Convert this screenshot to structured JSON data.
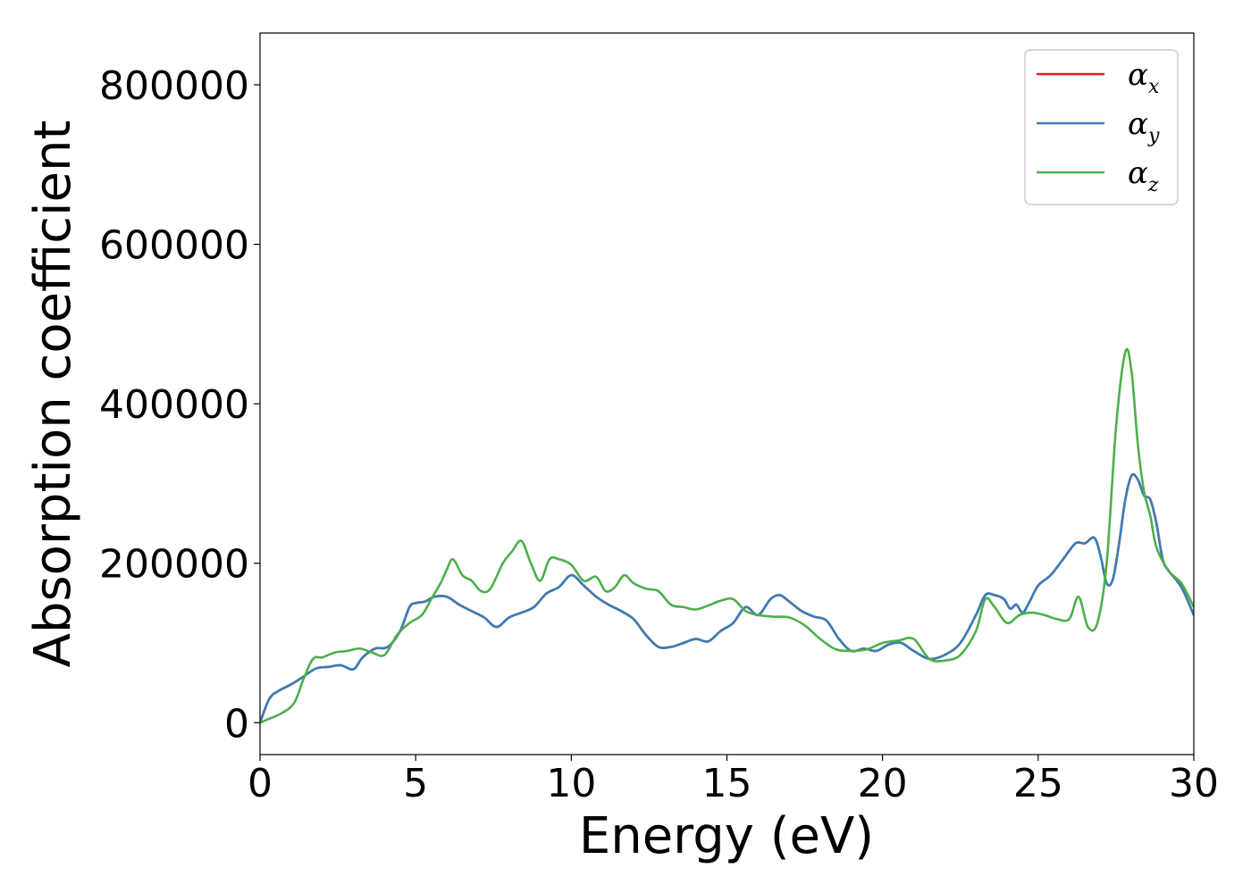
{
  "chart_data": {
    "type": "line",
    "title": "",
    "xlabel": "Energy (eV)",
    "ylabel": "Absorption coefficient",
    "xlim": [
      0,
      30
    ],
    "ylim": [
      -40000,
      865000
    ],
    "xticks": [
      0,
      5,
      10,
      15,
      20,
      25,
      30
    ],
    "yticks": [
      0,
      200000,
      400000,
      600000,
      800000
    ],
    "grid": false,
    "legend": {
      "placement": "top-right",
      "entries": [
        {
          "symbol": "α",
          "sub": "x",
          "color": "#e41a1c"
        },
        {
          "symbol": "α",
          "sub": "y",
          "color": "#377eb8"
        },
        {
          "symbol": "α",
          "sub": "z",
          "color": "#4daf4a"
        }
      ]
    },
    "series": [
      {
        "legend_index": 0,
        "color": "#e41a1c",
        "x": [
          0,
          0.3,
          0.6,
          1.0,
          1.4,
          1.8,
          2.2,
          2.6,
          3.0,
          3.3,
          3.7,
          4.1,
          4.5,
          4.8,
          5.0,
          5.3,
          5.6,
          6.0,
          6.4,
          6.8,
          7.2,
          7.6,
          8.0,
          8.4,
          8.8,
          9.2,
          9.6,
          10.0,
          10.4,
          10.8,
          11.2,
          11.6,
          12.0,
          12.4,
          12.8,
          13.2,
          13.6,
          14.0,
          14.4,
          14.8,
          15.2,
          15.6,
          16.0,
          16.4,
          16.7,
          17.0,
          17.4,
          17.8,
          18.2,
          18.6,
          19.0,
          19.4,
          19.8,
          20.2,
          20.6,
          21.0,
          21.5,
          22.0,
          22.5,
          23.0,
          23.3,
          23.6,
          23.9,
          24.1,
          24.3,
          24.5,
          24.7,
          25.0,
          25.4,
          25.8,
          26.2,
          26.5,
          26.8,
          27.0,
          27.2,
          27.4,
          27.6,
          27.8,
          28.0,
          28.2,
          28.4,
          28.6,
          28.8,
          29.0,
          29.2,
          29.6,
          30.0
        ],
        "y": [
          0,
          30000,
          40000,
          48000,
          58000,
          68000,
          70000,
          72000,
          67000,
          82000,
          93000,
          95000,
          115000,
          145000,
          150000,
          152000,
          158000,
          158000,
          148000,
          140000,
          132000,
          120000,
          132000,
          138000,
          145000,
          162000,
          170000,
          185000,
          172000,
          158000,
          148000,
          140000,
          130000,
          110000,
          95000,
          95000,
          100000,
          105000,
          102000,
          115000,
          125000,
          145000,
          135000,
          155000,
          160000,
          152000,
          140000,
          133000,
          128000,
          105000,
          90000,
          93000,
          90000,
          98000,
          100000,
          90000,
          80000,
          85000,
          100000,
          135000,
          160000,
          160000,
          155000,
          143000,
          148000,
          138000,
          150000,
          172000,
          185000,
          205000,
          225000,
          225000,
          232000,
          210000,
          175000,
          180000,
          225000,
          280000,
          310000,
          305000,
          285000,
          280000,
          250000,
          205000,
          190000,
          170000,
          135000
        ]
      },
      {
        "legend_index": 1,
        "color": "#377eb8",
        "x": [
          0,
          0.3,
          0.6,
          1.0,
          1.4,
          1.8,
          2.2,
          2.6,
          3.0,
          3.3,
          3.7,
          4.1,
          4.5,
          4.8,
          5.0,
          5.3,
          5.6,
          6.0,
          6.4,
          6.8,
          7.2,
          7.6,
          8.0,
          8.4,
          8.8,
          9.2,
          9.6,
          10.0,
          10.4,
          10.8,
          11.2,
          11.6,
          12.0,
          12.4,
          12.8,
          13.2,
          13.6,
          14.0,
          14.4,
          14.8,
          15.2,
          15.6,
          16.0,
          16.4,
          16.7,
          17.0,
          17.4,
          17.8,
          18.2,
          18.6,
          19.0,
          19.4,
          19.8,
          20.2,
          20.6,
          21.0,
          21.5,
          22.0,
          22.5,
          23.0,
          23.3,
          23.6,
          23.9,
          24.1,
          24.3,
          24.5,
          24.7,
          25.0,
          25.4,
          25.8,
          26.2,
          26.5,
          26.8,
          27.0,
          27.2,
          27.4,
          27.6,
          27.8,
          28.0,
          28.2,
          28.4,
          28.6,
          28.8,
          29.0,
          29.2,
          29.6,
          30.0
        ],
        "y": [
          0,
          30000,
          40000,
          48000,
          58000,
          68000,
          70000,
          72000,
          67000,
          82000,
          93000,
          95000,
          115000,
          145000,
          150000,
          152000,
          158000,
          158000,
          148000,
          140000,
          132000,
          120000,
          132000,
          138000,
          145000,
          162000,
          170000,
          185000,
          172000,
          158000,
          148000,
          140000,
          130000,
          110000,
          95000,
          95000,
          100000,
          105000,
          102000,
          115000,
          125000,
          145000,
          135000,
          155000,
          160000,
          152000,
          140000,
          133000,
          128000,
          105000,
          90000,
          93000,
          90000,
          98000,
          100000,
          90000,
          80000,
          85000,
          100000,
          135000,
          160000,
          160000,
          155000,
          143000,
          148000,
          138000,
          150000,
          172000,
          185000,
          205000,
          225000,
          225000,
          232000,
          210000,
          175000,
          180000,
          225000,
          280000,
          310000,
          305000,
          285000,
          280000,
          250000,
          205000,
          190000,
          170000,
          135000
        ]
      },
      {
        "legend_index": 2,
        "color": "#4daf4a",
        "x": [
          0,
          0.3,
          0.7,
          1.1,
          1.4,
          1.7,
          2.0,
          2.4,
          2.8,
          3.2,
          3.6,
          4.0,
          4.4,
          4.8,
          5.2,
          5.5,
          5.8,
          6.0,
          6.2,
          6.5,
          6.8,
          7.1,
          7.4,
          7.8,
          8.1,
          8.4,
          8.7,
          9.0,
          9.3,
          9.6,
          10.0,
          10.4,
          10.8,
          11.1,
          11.4,
          11.7,
          12.0,
          12.4,
          12.8,
          13.2,
          13.6,
          14.0,
          14.4,
          14.8,
          15.2,
          15.6,
          16.0,
          16.5,
          17.0,
          17.5,
          18.0,
          18.5,
          19.0,
          19.5,
          20.0,
          20.5,
          21.0,
          21.5,
          22.0,
          22.5,
          23.0,
          23.3,
          23.6,
          24.0,
          24.4,
          24.8,
          25.2,
          25.6,
          26.0,
          26.3,
          26.6,
          26.9,
          27.2,
          27.5,
          27.8,
          28.0,
          28.2,
          28.4,
          28.6,
          28.8,
          29.2,
          29.6,
          30.0
        ],
        "y": [
          0,
          5000,
          12000,
          25000,
          55000,
          80000,
          82000,
          88000,
          90000,
          93000,
          88000,
          85000,
          110000,
          125000,
          135000,
          155000,
          175000,
          192000,
          205000,
          185000,
          178000,
          165000,
          168000,
          200000,
          215000,
          228000,
          200000,
          178000,
          205000,
          205000,
          198000,
          178000,
          183000,
          165000,
          170000,
          185000,
          175000,
          168000,
          165000,
          148000,
          145000,
          142000,
          147000,
          153000,
          155000,
          140000,
          135000,
          133000,
          132000,
          122000,
          105000,
          92000,
          90000,
          92000,
          100000,
          103000,
          105000,
          80000,
          78000,
          85000,
          115000,
          155000,
          145000,
          125000,
          135000,
          138000,
          135000,
          130000,
          130000,
          158000,
          120000,
          125000,
          200000,
          370000,
          465000,
          440000,
          350000,
          290000,
          260000,
          220000,
          190000,
          175000,
          145000
        ]
      }
    ]
  }
}
